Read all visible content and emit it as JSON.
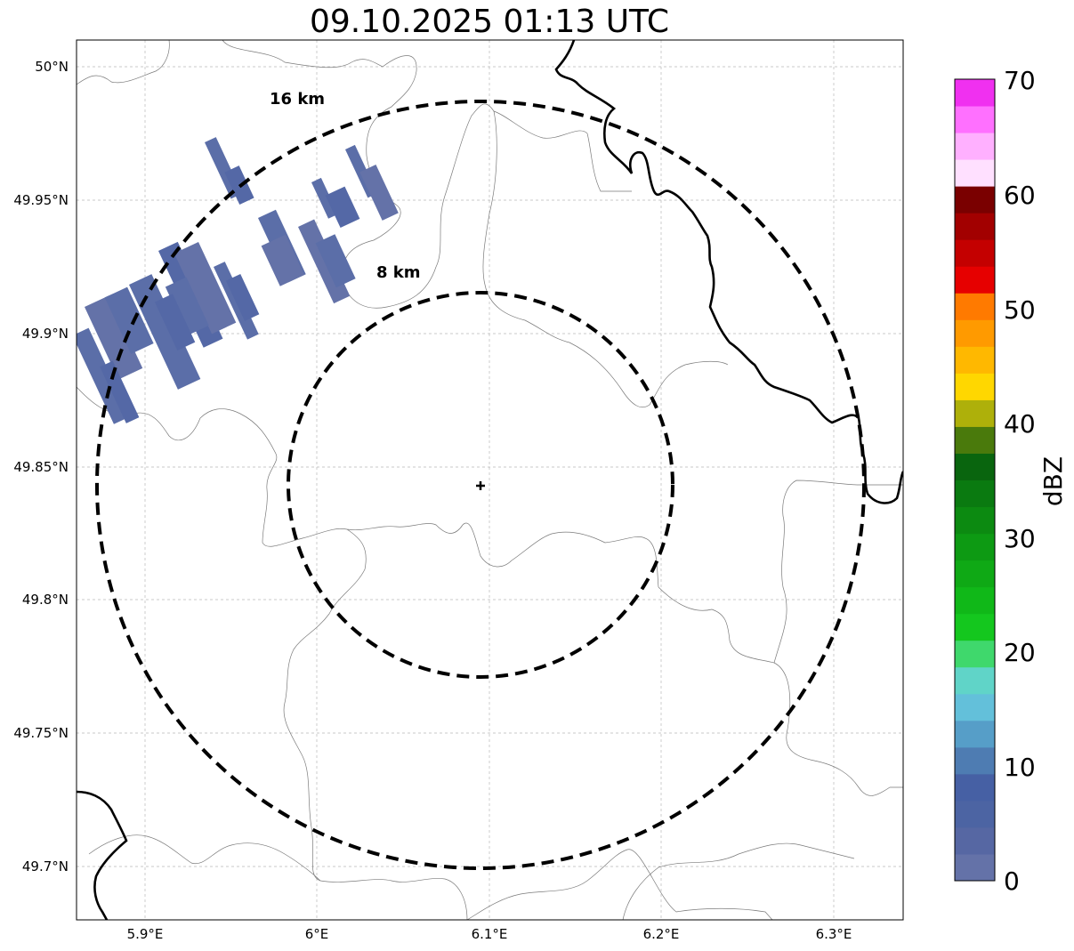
{
  "title": "09.10.2025 01:13 UTC",
  "map": {
    "lon_ticks": [
      "5.9°E",
      "6°E",
      "6.1°E",
      "6.2°E",
      "6.3°E"
    ],
    "lat_ticks": [
      "50°N",
      "49.95°N",
      "49.9°N",
      "49.85°N",
      "49.8°N",
      "49.75°N",
      "49.7°N"
    ],
    "lon_range": [
      5.86,
      6.34
    ],
    "lat_range": [
      49.68,
      50.01
    ],
    "center": {
      "lon": 6.095,
      "lat": 49.843
    },
    "rings": [
      {
        "label": "16 km",
        "radius_km": 16
      },
      {
        "label": "8 km",
        "radius_km": 8
      }
    ],
    "grid": true
  },
  "colorbar": {
    "label": "dBZ",
    "ticks": [
      "0",
      "10",
      "20",
      "30",
      "40",
      "50",
      "60",
      "70"
    ],
    "colors": [
      "#6472a8",
      "#5667a3",
      "#4c64a3",
      "#4660a4",
      "#4e7cb2",
      "#569ec8",
      "#63c0da",
      "#60d4c8",
      "#3fd86c",
      "#14c71e",
      "#10b818",
      "#0fa915",
      "#0d9a13",
      "#0c8a11",
      "#0a7a10",
      "#09650e",
      "#4a7a0c",
      "#aeb00a",
      "#ffd700",
      "#ffb800",
      "#ff9a00",
      "#ff7a00",
      "#e60000",
      "#c40000",
      "#a20000",
      "#7a0000",
      "#ffe0ff",
      "#ffb0ff",
      "#ff70ff",
      "#f030f0"
    ]
  }
}
